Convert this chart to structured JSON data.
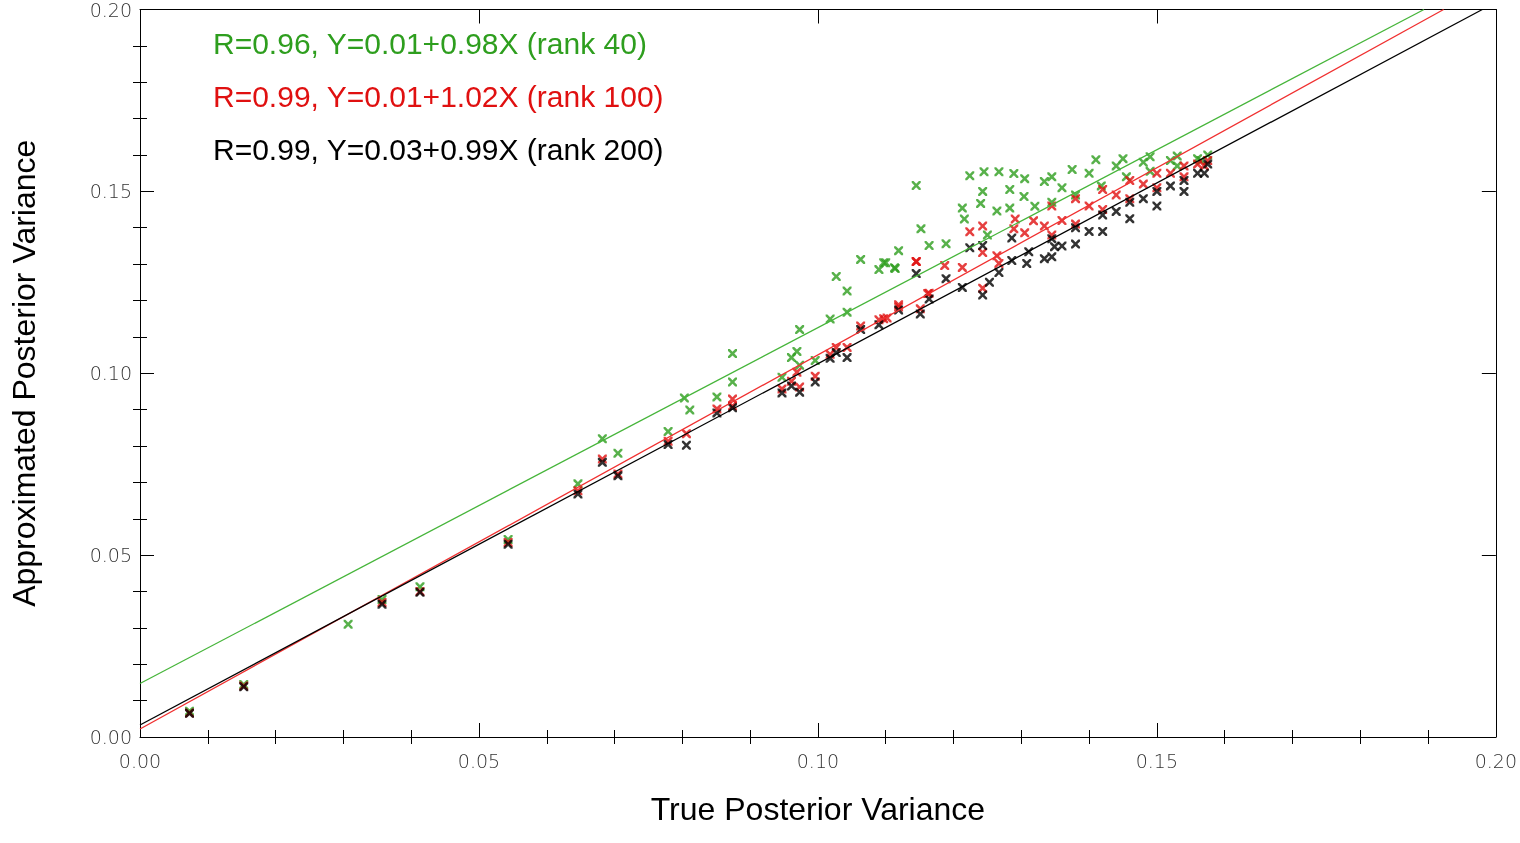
{
  "chart_data": {
    "type": "scatter",
    "xlabel": "True Posterior Variance",
    "ylabel": "Approximated Posterior Variance",
    "xlim": [
      0,
      0.2
    ],
    "ylim": [
      0,
      0.2
    ],
    "xticks": [
      {
        "value": 0,
        "label": "0.00"
      },
      {
        "value": 0.05,
        "label": "0.05"
      },
      {
        "value": 0.1,
        "label": "0.10"
      },
      {
        "value": 0.15,
        "label": "0.15"
      },
      {
        "value": 0.2,
        "label": "0.20"
      }
    ],
    "yticks": [
      {
        "value": 0,
        "label": "0.00"
      },
      {
        "value": 0.05,
        "label": "0.05"
      },
      {
        "value": 0.1,
        "label": "0.10"
      },
      {
        "value": 0.15,
        "label": "0.15"
      },
      {
        "value": 0.2,
        "label": "0.20"
      }
    ],
    "grid": false,
    "marker": "cross",
    "annotations": [
      "R=0.96, Y=0.01+0.98X (rank 40)",
      "R=0.99, Y=0.01+1.02X (rank 100)",
      "R=0.99, Y=0.03+0.99X (rank 200)"
    ],
    "series": [
      {
        "color": "#2e9e1e",
        "x": [
          0.0073,
          0.0153,
          0.0307,
          0.0357,
          0.0413,
          0.0543,
          0.0646,
          0.0682,
          0.0705,
          0.0779,
          0.0803,
          0.0811,
          0.0851,
          0.0874,
          0.0874,
          0.0947,
          0.0961,
          0.0969,
          0.0973,
          0.0973,
          0.0996,
          0.1018,
          0.1027,
          0.1043,
          0.1043,
          0.1063,
          0.109,
          0.1097,
          0.1113,
          0.1119,
          0.1164,
          0.1145,
          0.1224,
          0.1245,
          0.1267,
          0.1289,
          0.1305,
          0.1213,
          0.1216,
          0.1243,
          0.124,
          0.1264,
          0.1283,
          0.1283,
          0.1304,
          0.132,
          0.1334,
          0.1152,
          0.1189,
          0.1114,
          0.11,
          0.125,
          0.1345,
          0.1375,
          0.141,
          0.145,
          0.149,
          0.153,
          0.1575,
          0.1345,
          0.138,
          0.1418,
          0.1455,
          0.149,
          0.153,
          0.1565,
          0.136,
          0.14,
          0.144,
          0.148,
          0.152,
          0.156
        ],
        "values": [
          0.0071,
          0.0144,
          0.031,
          0.0378,
          0.0413,
          0.0543,
          0.0696,
          0.082,
          0.078,
          0.084,
          0.0932,
          0.0899,
          0.0935,
          0.1054,
          0.0976,
          0.0989,
          0.1043,
          0.106,
          0.112,
          0.1022,
          0.1035,
          0.1149,
          0.1266,
          0.1226,
          0.1168,
          0.1313,
          0.1285,
          0.1304,
          0.129,
          0.1337,
          0.1351,
          0.1516,
          0.1543,
          0.1554,
          0.1554,
          0.1549,
          0.1535,
          0.1454,
          0.1424,
          0.15,
          0.1467,
          0.1446,
          0.1505,
          0.1454,
          0.1486,
          0.1459,
          0.1527,
          0.1397,
          0.1356,
          0.1288,
          0.1304,
          0.138,
          0.154,
          0.156,
          0.1587,
          0.159,
          0.1595,
          0.1597,
          0.16,
          0.147,
          0.149,
          0.1515,
          0.154,
          0.1555,
          0.157,
          0.1585,
          0.151,
          0.155,
          0.157,
          0.158,
          0.1585,
          0.159
        ]
      },
      {
        "color": "#e01010",
        "x": [
          0.0073,
          0.0153,
          0.0357,
          0.0413,
          0.0543,
          0.0646,
          0.0682,
          0.0705,
          0.0779,
          0.0806,
          0.0851,
          0.0874,
          0.0874,
          0.0947,
          0.0961,
          0.0969,
          0.0973,
          0.0996,
          0.1018,
          0.1027,
          0.1043,
          0.1063,
          0.109,
          0.1097,
          0.1119,
          0.1151,
          0.1164,
          0.1145,
          0.1243,
          0.1224,
          0.1291,
          0.1318,
          0.1305,
          0.1289,
          0.1334,
          0.1243,
          0.1264,
          0.1267,
          0.1213,
          0.1187,
          0.1145,
          0.1162,
          0.1243,
          0.1119,
          0.1102,
          0.1345,
          0.138,
          0.142,
          0.146,
          0.15,
          0.154,
          0.1575,
          0.1345,
          0.138,
          0.142,
          0.146,
          0.15,
          0.154,
          0.157,
          0.136,
          0.14,
          0.144,
          0.148,
          0.152,
          0.156
        ],
        "values": [
          0.0066,
          0.014,
          0.037,
          0.04,
          0.0535,
          0.0677,
          0.0764,
          0.0723,
          0.0813,
          0.0834,
          0.0902,
          0.0929,
          0.091,
          0.0957,
          0.0978,
          0.1003,
          0.0962,
          0.0992,
          0.1052,
          0.1071,
          0.1071,
          0.113,
          0.1147,
          0.115,
          0.1188,
          0.1177,
          0.122,
          0.1307,
          0.1405,
          0.1389,
          0.1424,
          0.1419,
          0.1386,
          0.1397,
          0.1405,
          0.1332,
          0.1323,
          0.1302,
          0.1291,
          0.1296,
          0.1307,
          0.1219,
          0.1234,
          0.1182,
          0.1152,
          0.146,
          0.148,
          0.1505,
          0.153,
          0.155,
          0.157,
          0.1585,
          0.138,
          0.141,
          0.145,
          0.148,
          0.151,
          0.154,
          0.157,
          0.142,
          0.146,
          0.149,
          0.152,
          0.155,
          0.1575
        ]
      },
      {
        "color": "#000000",
        "x": [
          0.0073,
          0.0153,
          0.0357,
          0.0413,
          0.0543,
          0.0646,
          0.0682,
          0.0705,
          0.0779,
          0.0806,
          0.0851,
          0.0874,
          0.0947,
          0.0961,
          0.0973,
          0.0996,
          0.1018,
          0.1027,
          0.1043,
          0.1063,
          0.109,
          0.1119,
          0.1151,
          0.1164,
          0.1145,
          0.1189,
          0.1224,
          0.1243,
          0.1243,
          0.1213,
          0.1253,
          0.1267,
          0.1286,
          0.1286,
          0.1308,
          0.1334,
          0.1311,
          0.1349,
          0.1345,
          0.138,
          0.142,
          0.146,
          0.15,
          0.154,
          0.1575,
          0.1345,
          0.138,
          0.142,
          0.146,
          0.15,
          0.154,
          0.157,
          0.136,
          0.14,
          0.144,
          0.148,
          0.152,
          0.156
        ],
        "values": [
          0.0065,
          0.0138,
          0.0365,
          0.0398,
          0.053,
          0.0668,
          0.0755,
          0.0718,
          0.0804,
          0.0802,
          0.0891,
          0.0905,
          0.0946,
          0.0965,
          0.0948,
          0.0976,
          0.1041,
          0.1057,
          0.1043,
          0.112,
          0.1133,
          0.1174,
          0.1163,
          0.1204,
          0.1274,
          0.126,
          0.1345,
          0.1351,
          0.1215,
          0.1236,
          0.125,
          0.1277,
          0.131,
          0.1372,
          0.1302,
          0.1315,
          0.1334,
          0.1348,
          0.137,
          0.14,
          0.1435,
          0.147,
          0.15,
          0.153,
          0.1575,
          0.132,
          0.1355,
          0.139,
          0.1425,
          0.146,
          0.15,
          0.155,
          0.135,
          0.139,
          0.1445,
          0.148,
          0.1515,
          0.155
        ]
      },
      {
        "type": "line",
        "marker": "none",
        "color": "#46b53a",
        "x": [
          0,
          0.1894
        ],
        "values": [
          0.0147,
          0.2
        ]
      },
      {
        "type": "line",
        "marker": "none",
        "color": "#f03030",
        "x": [
          0,
          0.1923
        ],
        "values": [
          0.0022,
          0.2
        ]
      },
      {
        "type": "line",
        "marker": "none",
        "color": "#000000",
        "x": [
          0,
          0.198
        ],
        "values": [
          0.0033,
          0.2
        ]
      }
    ]
  }
}
